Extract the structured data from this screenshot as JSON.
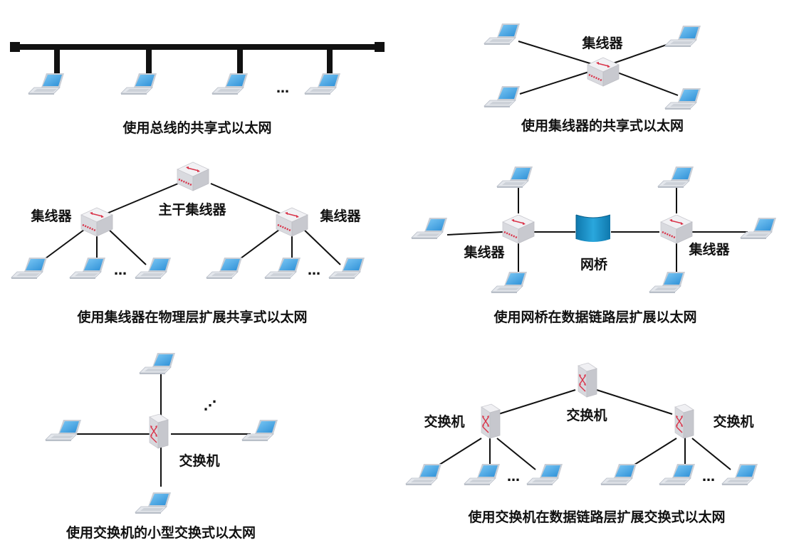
{
  "panels": {
    "bus": {
      "caption": "使用总线的共享式以太网",
      "ellipsis": "…"
    },
    "hub_shared": {
      "caption": "使用集线器的共享式以太网",
      "hub_label": "集线器"
    },
    "hub_tree": {
      "caption": "使用集线器在物理层扩展共享式以太网",
      "backbone_label": "主干集线器",
      "left_hub_label": "集线器",
      "right_hub_label": "集线器",
      "ellipsis": "…"
    },
    "bridge": {
      "caption": "使用网桥在数据链路层扩展以太网",
      "bridge_label": "网桥",
      "left_hub_label": "集线器",
      "right_hub_label": "集线器"
    },
    "switch_small": {
      "caption": "使用交换机的小型交换式以太网",
      "switch_label": "交换机",
      "ellipsis": "⋰"
    },
    "switch_tree": {
      "caption": "使用交换机在数据链路层扩展交换式以太网",
      "top_switch_label": "交换机",
      "left_switch_label": "交换机",
      "right_switch_label": "交换机",
      "ellipsis": "…"
    }
  },
  "colors": {
    "line": "#111111",
    "screen": "#3ea3e6",
    "laptop_body": "#e2e5ea",
    "device_body": "#e6e6ea",
    "device_red": "#d9344a",
    "bridge_blue": "#1a8fc6"
  },
  "icons": [
    "laptop-icon",
    "hub-icon",
    "switch-icon",
    "bridge-icon"
  ]
}
